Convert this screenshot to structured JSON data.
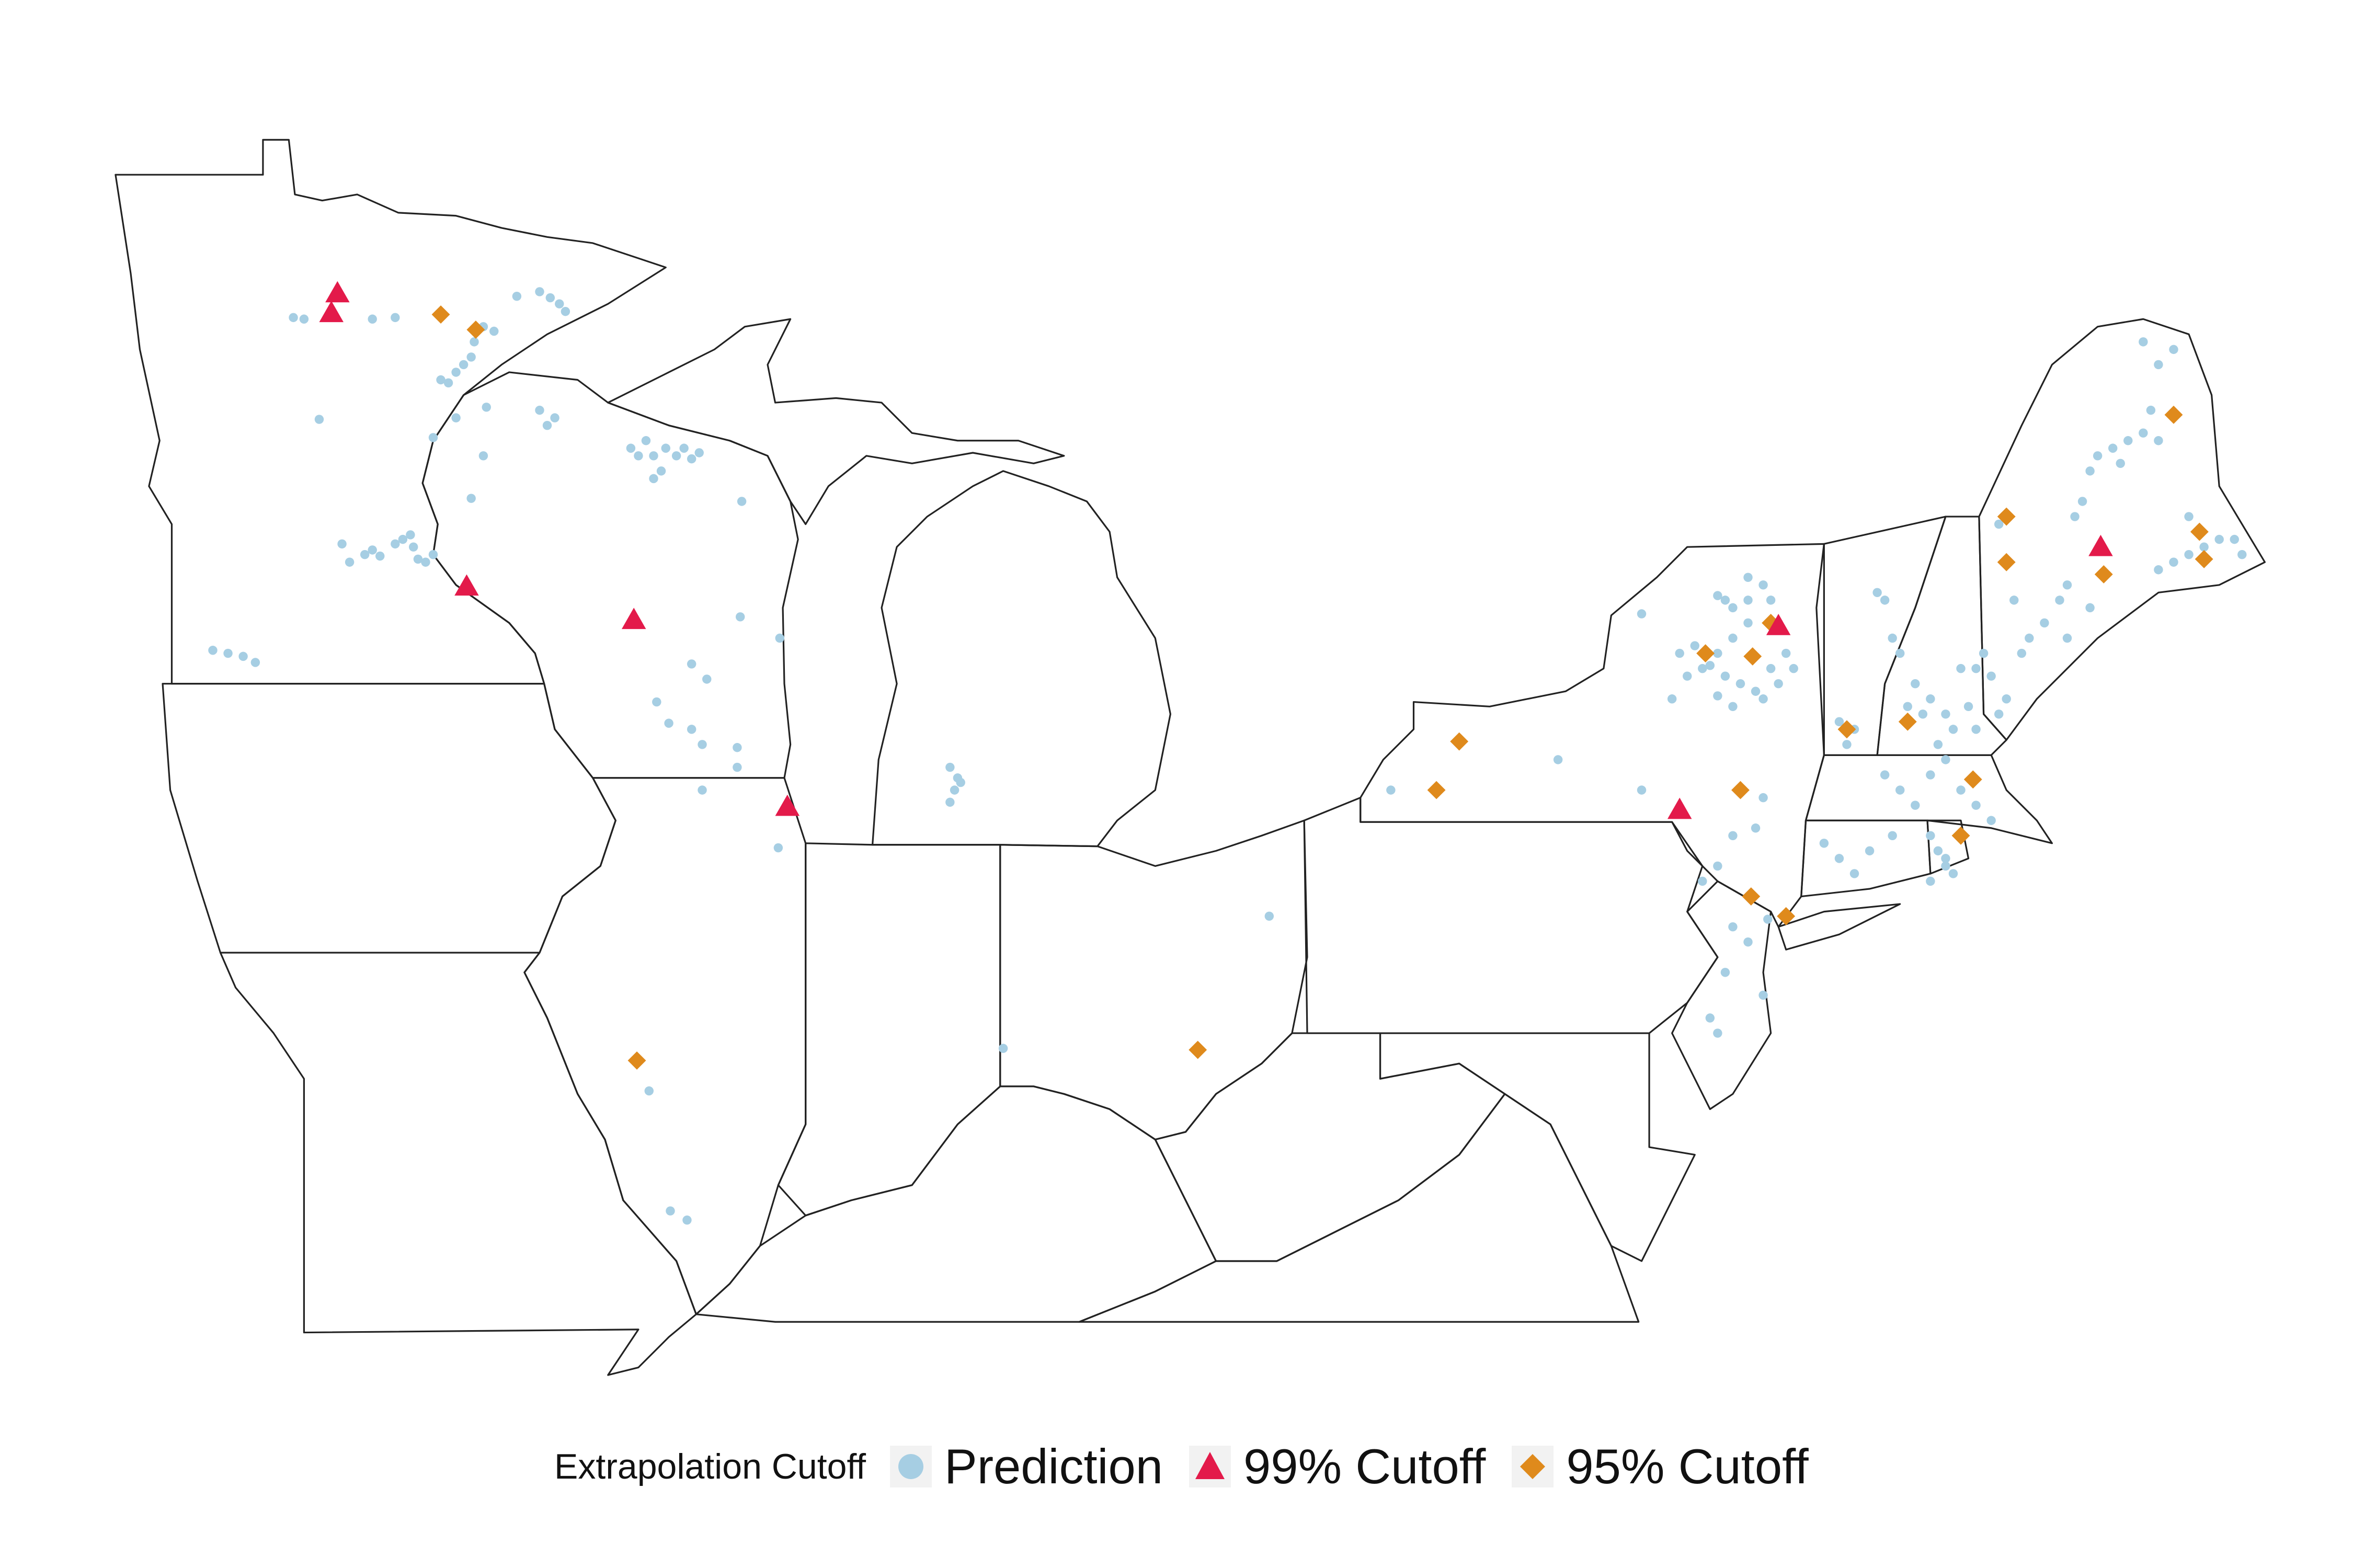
{
  "legend": {
    "title": "Extrapolation Cutoff",
    "items": [
      {
        "label": "Prediction",
        "symbol": "circle-marker-icon",
        "color": "#a6cee3"
      },
      {
        "label": "99% Cutoff",
        "symbol": "triangle-marker-icon",
        "color": "#e31a4a"
      },
      {
        "label": "95% Cutoff",
        "symbol": "diamond-marker-icon",
        "color": "#df8a1c"
      }
    ]
  },
  "colors": {
    "prediction": "#a6cee3",
    "cutoff99": "#e31a4a",
    "cutoff95": "#df8a1c",
    "border": "#222222"
  }
}
